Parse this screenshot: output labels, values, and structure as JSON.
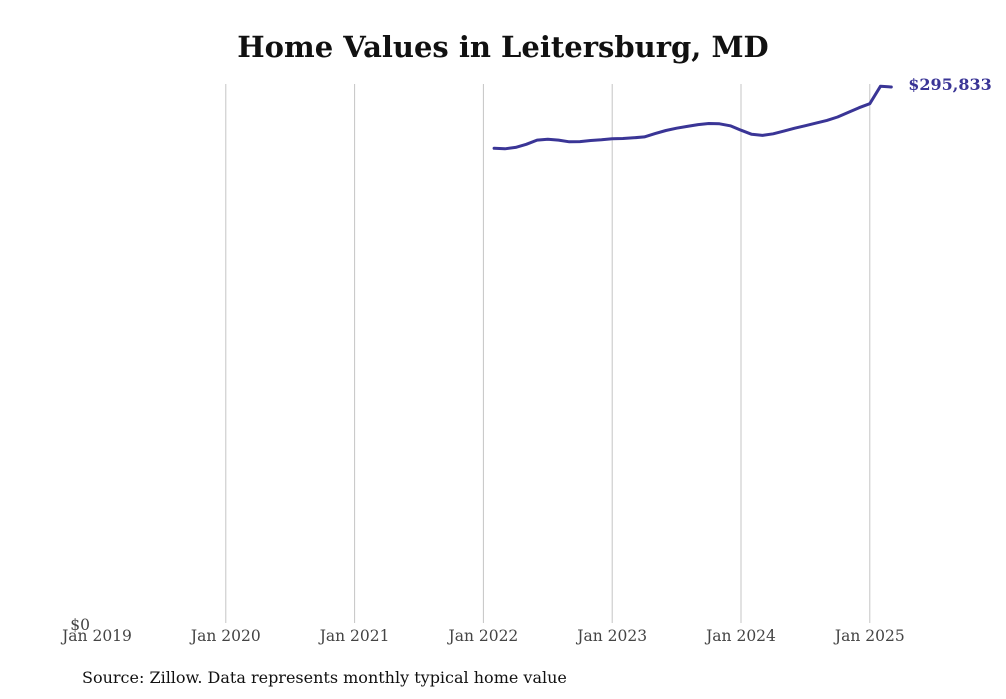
{
  "chart_data": {
    "type": "line",
    "title": "Home Values in Leitersburg, MD",
    "xlabel": "",
    "ylabel": "",
    "x_tick_labels": [
      "Jan 2019",
      "Jan 2020",
      "Jan 2021",
      "Jan 2022",
      "Jan 2023",
      "Jan 2024",
      "Jan 2025"
    ],
    "y_tick_labels": [
      "$0"
    ],
    "ylim": [
      0,
      295833
    ],
    "xlim": [
      "2019-01",
      "2025-04"
    ],
    "grid": "vertical",
    "line_color": "#3a3596",
    "end_label": "$295,833",
    "series": [
      {
        "x": [
          "2022-02",
          "2022-03",
          "2022-04",
          "2022-05",
          "2022-06",
          "2022-07",
          "2022-08",
          "2022-09",
          "2022-10",
          "2022-11",
          "2022-12",
          "2023-01",
          "2023-02",
          "2023-03",
          "2023-04",
          "2023-05",
          "2023-06",
          "2023-07",
          "2023-08",
          "2023-09",
          "2023-10",
          "2023-11",
          "2023-12",
          "2024-01",
          "2024-02",
          "2024-03",
          "2024-04",
          "2024-05",
          "2024-06",
          "2024-07",
          "2024-08",
          "2024-09",
          "2024-10",
          "2024-11",
          "2024-12",
          "2025-01",
          "2025-02",
          "2025-03"
        ],
        "values": [
          262000,
          261700,
          262500,
          264200,
          266500,
          267000,
          266500,
          265600,
          265700,
          266300,
          266700,
          267300,
          267400,
          267800,
          268300,
          270100,
          271800,
          273100,
          274100,
          275100,
          275700,
          275500,
          274400,
          272000,
          269700,
          269100,
          270000,
          271500,
          273100,
          274500,
          275900,
          277400,
          279300,
          281800,
          284400,
          286600,
          296300,
          295833
        ]
      }
    ]
  },
  "source_note": "Source: Zillow. Data represents monthly typical home value"
}
